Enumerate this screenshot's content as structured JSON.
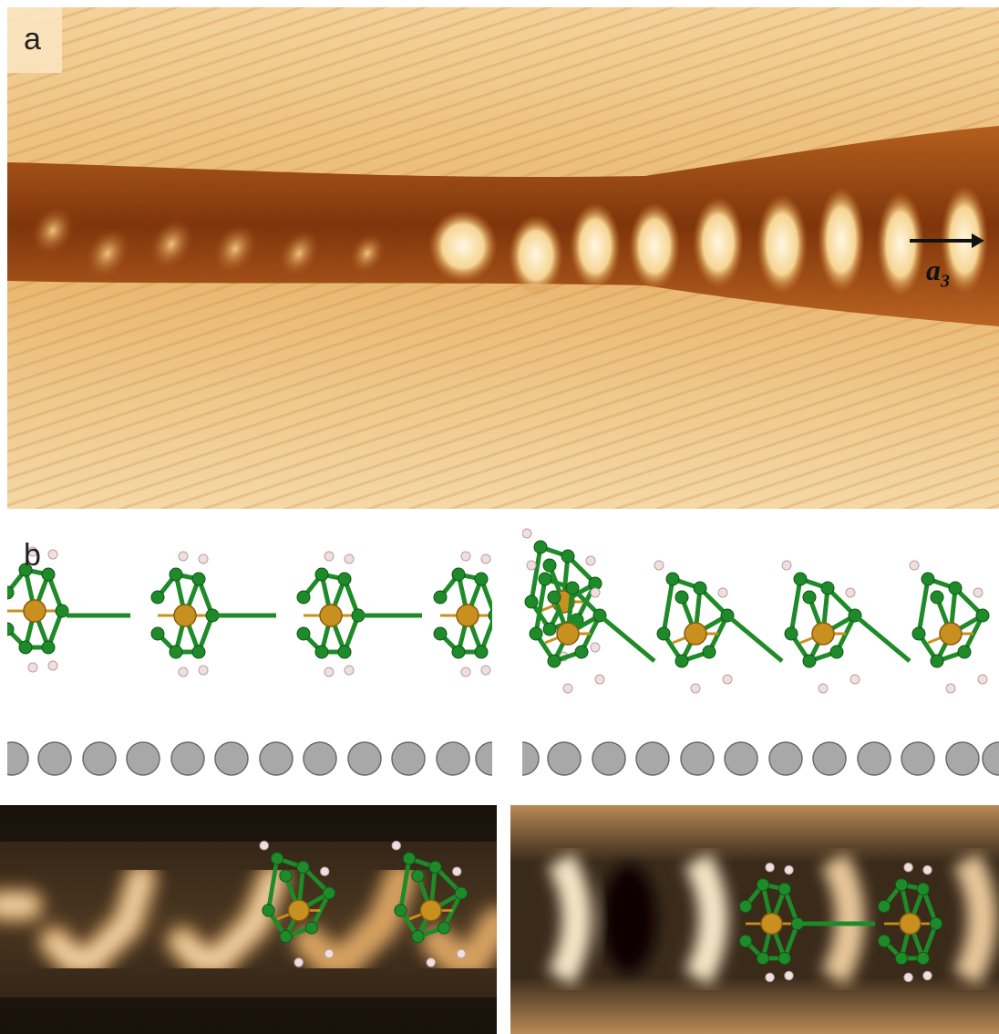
{
  "figure": {
    "panel_a": {
      "label": "a",
      "vector_label": "a",
      "vector_subscript": "3"
    },
    "panel_b": {
      "label": "b"
    }
  },
  "colors": {
    "stm_light": "#f0c98a",
    "stm_dark": "#8a3a08",
    "stm_bright": "#fff6dc",
    "boron_green": "#1f8a2a",
    "metal_gold": "#c8901e",
    "hydrogen_pink": "#f1dede",
    "substrate_gray": "#9a9a9a"
  }
}
